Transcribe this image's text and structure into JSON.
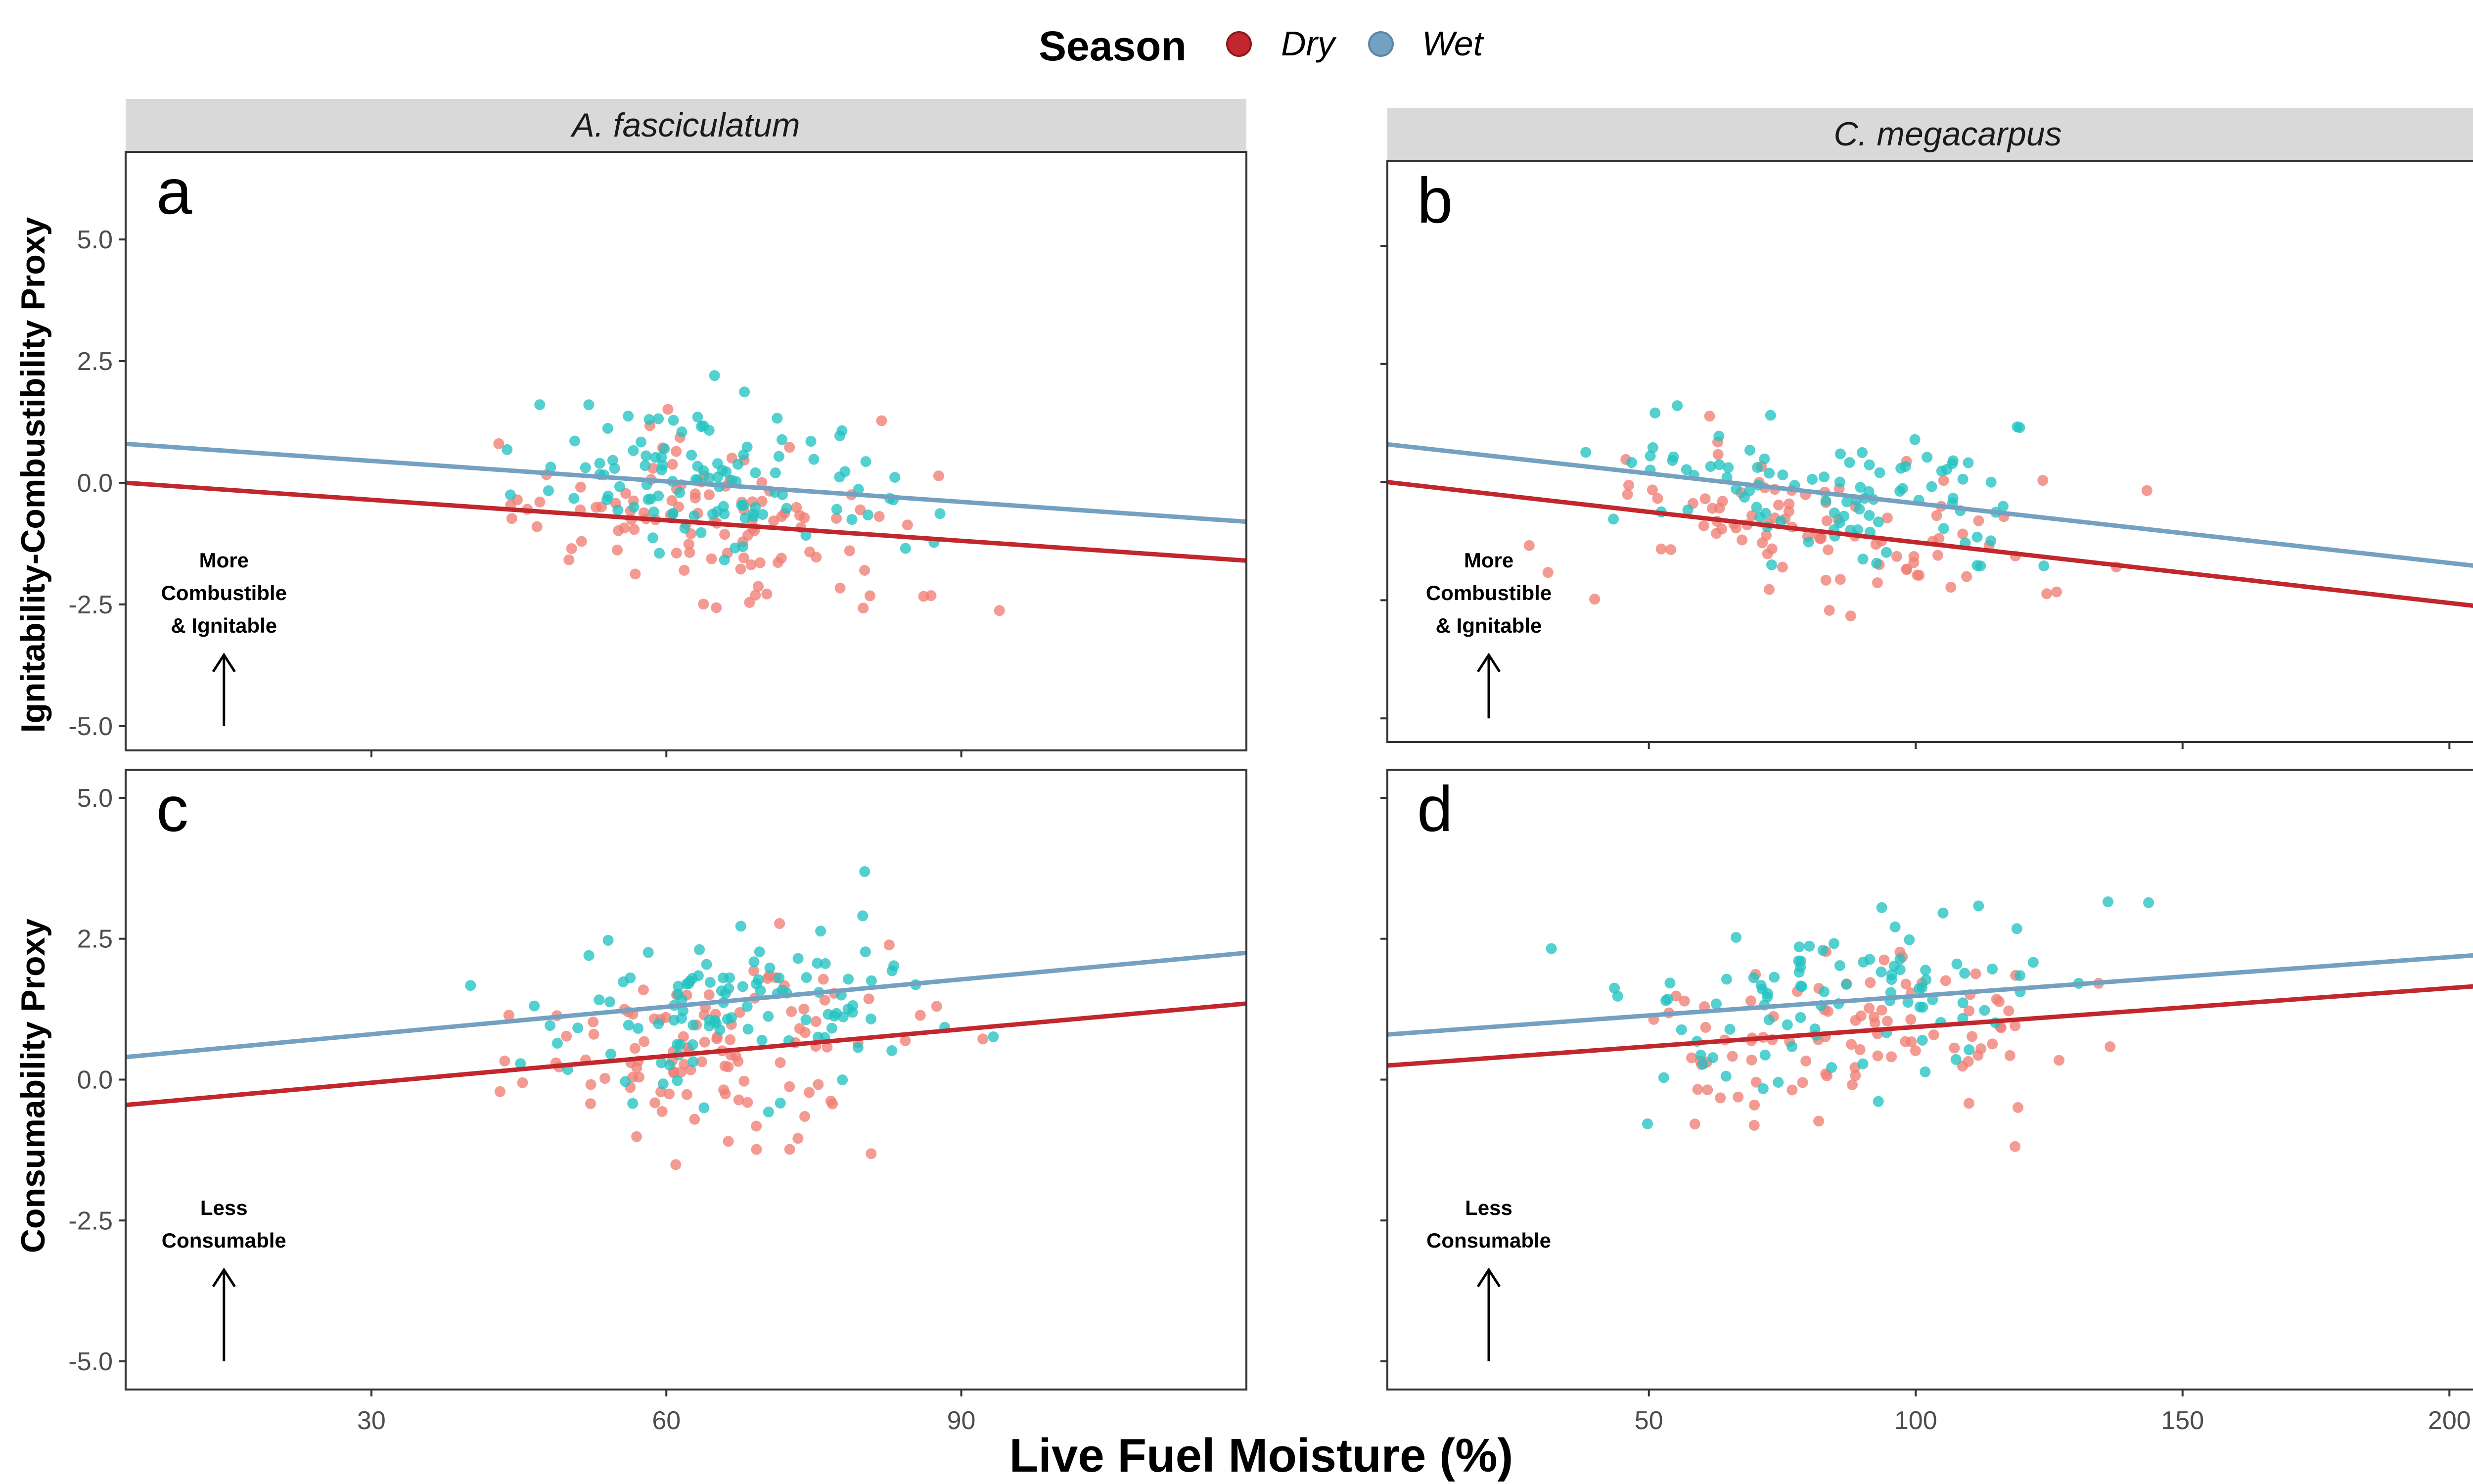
{
  "legend": {
    "title": "Season",
    "items": [
      {
        "label": "Dry",
        "color": "#c1272d"
      },
      {
        "label": "Wet",
        "color": "#74a1c1"
      }
    ]
  },
  "colors": {
    "dry_points": "#f07f75",
    "wet_points": "#22c3c1",
    "dry_line": "#c1272d",
    "wet_line": "#74a1c1",
    "strip_bg": "#d9d9d9"
  },
  "x_axis_title": "Live Fuel Moisture (%)",
  "rows": [
    {
      "y_label": "Ignitability-Combustibility Proxy"
    },
    {
      "y_label": "Consumability Proxy"
    }
  ],
  "columns": [
    {
      "strip": "A. fasciculatum"
    },
    {
      "strip": "C. megacarpus"
    }
  ],
  "chart_data": [
    {
      "type": "scatter",
      "panel": "a",
      "title": "A. fasciculatum",
      "ylabel": "Ignitability-Combustibility Proxy",
      "xlim": [
        5,
        119
      ],
      "ylim": [
        -5.5,
        6.8
      ],
      "xticks": [
        30,
        60,
        90
      ],
      "xtick_labels": [
        "30",
        "60",
        "90"
      ],
      "yticks": [
        -5,
        -2.5,
        0,
        2.5,
        5
      ],
      "ytick_labels": [
        "-5.0",
        "-2.5",
        "0.0",
        "2.5",
        "5.0"
      ],
      "annotation": {
        "lines": [
          "More",
          "Combustible",
          "& Ignitable"
        ],
        "arrow": "up",
        "x": 15
      },
      "lines": [
        {
          "series": "Dry",
          "x": [
            5,
            119
          ],
          "y": [
            0.0,
            -1.6
          ]
        },
        {
          "series": "Wet",
          "x": [
            5,
            119
          ],
          "y": [
            0.8,
            -0.8
          ]
        }
      ]
    },
    {
      "type": "scatter",
      "panel": "b",
      "title": "C. megacarpus",
      "ylabel": "",
      "xlim": [
        1,
        211
      ],
      "ylim": [
        -5.5,
        6.8
      ],
      "xticks": [
        50,
        100,
        150,
        200
      ],
      "xtick_labels": [
        "50",
        "100",
        "150",
        "200"
      ],
      "yticks": [
        -5,
        -2.5,
        0,
        2.5,
        5
      ],
      "ytick_labels": [
        "",
        "",
        "",
        "",
        ""
      ],
      "annotation": {
        "lines": [
          "More",
          "Combustible",
          "& Ignitable"
        ],
        "arrow": "up",
        "x": 20
      },
      "lines": [
        {
          "series": "Dry",
          "x": [
            1,
            211
          ],
          "y": [
            0.0,
            -2.7
          ]
        },
        {
          "series": "Wet",
          "x": [
            1,
            211
          ],
          "y": [
            0.8,
            -1.85
          ]
        }
      ]
    },
    {
      "type": "scatter",
      "panel": "c",
      "title": "",
      "ylabel": "Consumability Proxy",
      "xlim": [
        5,
        119
      ],
      "ylim": [
        -5.5,
        5.5
      ],
      "xticks": [
        30,
        60,
        90
      ],
      "xtick_labels": [
        "30",
        "60",
        "90"
      ],
      "yticks": [
        -5,
        -2.5,
        0,
        2.5,
        5
      ],
      "ytick_labels": [
        "-5.0",
        "-2.5",
        "0.0",
        "2.5",
        "5.0"
      ],
      "annotation": {
        "lines": [
          "Less",
          "Consumable"
        ],
        "arrow": "up",
        "x": 15
      },
      "lines": [
        {
          "series": "Dry",
          "x": [
            5,
            119
          ],
          "y": [
            -0.45,
            1.35
          ]
        },
        {
          "series": "Wet",
          "x": [
            5,
            119
          ],
          "y": [
            0.4,
            2.25
          ]
        }
      ]
    },
    {
      "type": "scatter",
      "panel": "d",
      "title": "",
      "ylabel": "",
      "xlim": [
        1,
        211
      ],
      "ylim": [
        -5.5,
        5.5
      ],
      "xticks": [
        50,
        100,
        150,
        200
      ],
      "xtick_labels": [
        "50",
        "100",
        "150",
        "200"
      ],
      "yticks": [
        -5,
        -2.5,
        0,
        2.5,
        5
      ],
      "ytick_labels": [
        "",
        "",
        "",
        "",
        ""
      ],
      "annotation": {
        "lines": [
          "Less",
          "Consumable"
        ],
        "arrow": "up",
        "x": 20
      },
      "lines": [
        {
          "series": "Dry",
          "x": [
            1,
            211
          ],
          "y": [
            0.25,
            1.7
          ]
        },
        {
          "series": "Wet",
          "x": [
            1,
            211
          ],
          "y": [
            0.8,
            2.25
          ]
        }
      ]
    }
  ]
}
